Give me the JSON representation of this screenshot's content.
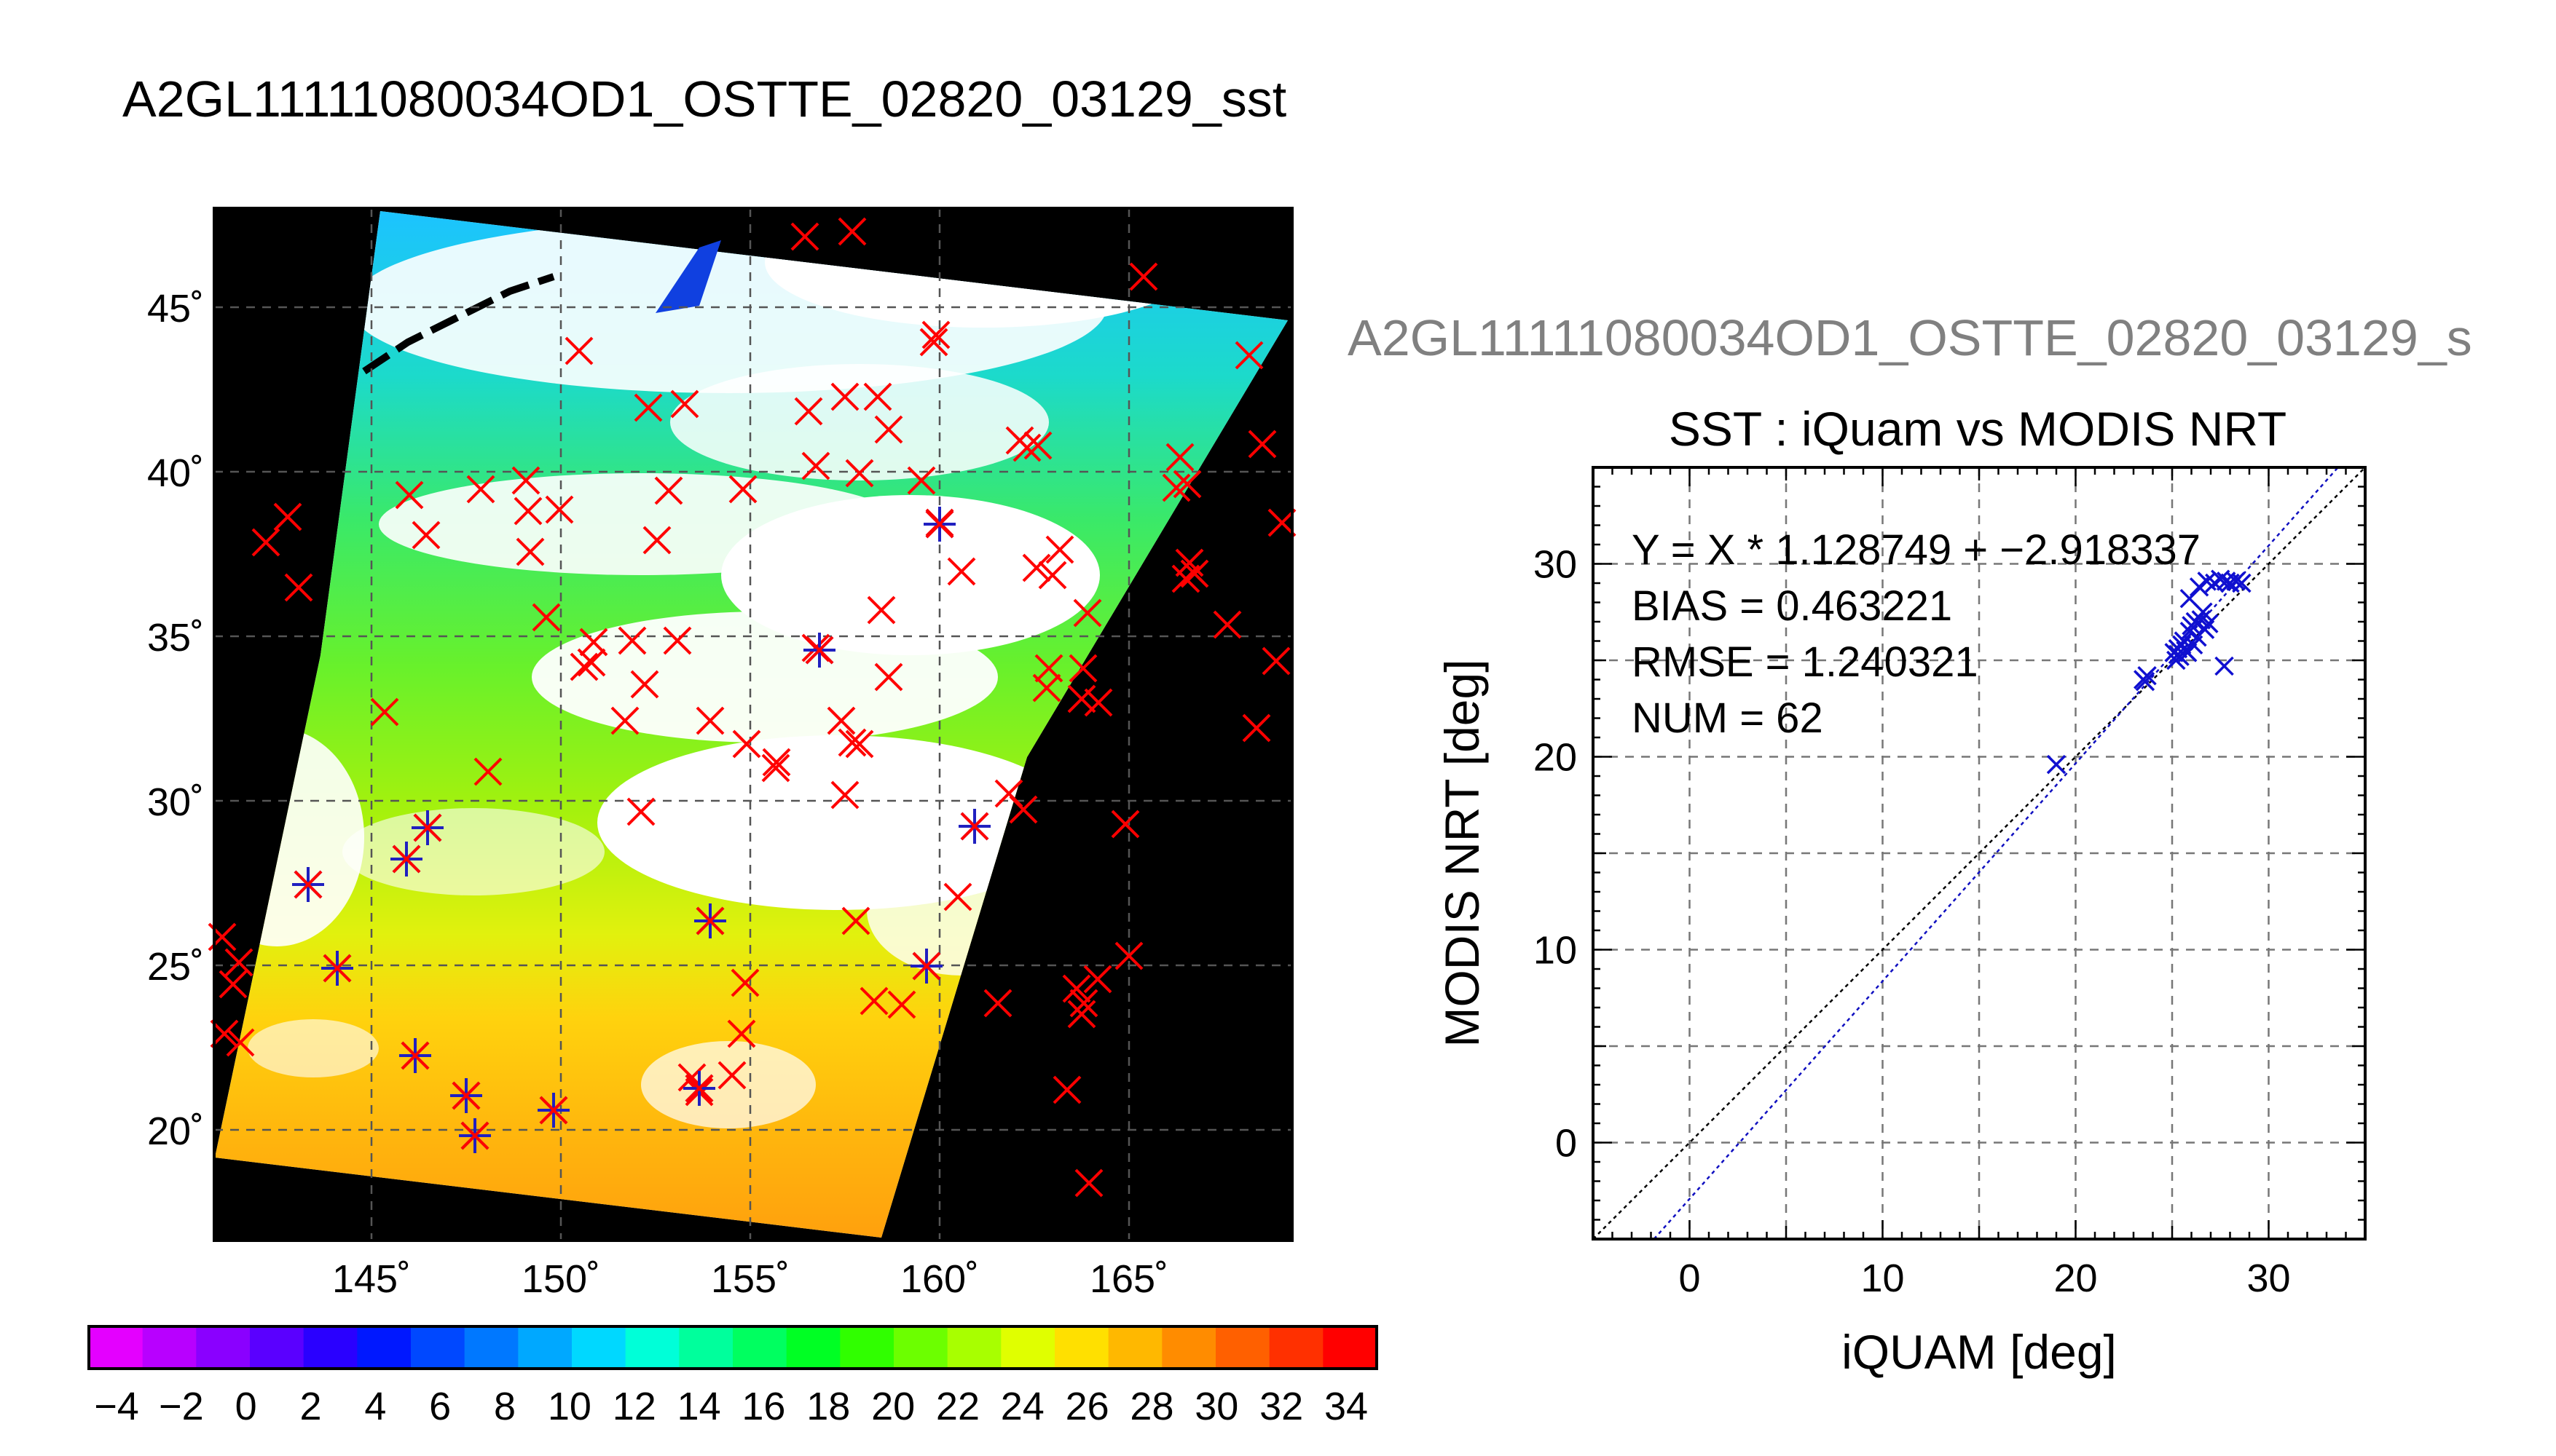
{
  "page_title": "A2GL11111080034OD1_OSTTE_02820_03129_sst",
  "scatter_subtitle": "A2GL11111080034OD1_OSTTE_02820_03129_s",
  "colors": {
    "scatter_marker": "#1010d0",
    "map_marker_red": "#ff0000",
    "map_marker_blue": "#2020c0",
    "fit_line": "#1010c0",
    "one_to_one_line": "#000000"
  },
  "map": {
    "lon_ticks": [
      "145˚",
      "150˚",
      "155˚",
      "160˚",
      "165˚"
    ],
    "lat_ticks": [
      "45˚",
      "40˚",
      "35˚",
      "30˚",
      "25˚",
      "20˚"
    ],
    "colorbar": {
      "ticks": [
        "−4",
        "−2",
        "0",
        "2",
        "4",
        "6",
        "8",
        "10",
        "12",
        "14",
        "16",
        "18",
        "20",
        "22",
        "24",
        "26",
        "28",
        "30",
        "32",
        "34"
      ],
      "colors": [
        "#e400ff",
        "#b800ff",
        "#8a00ff",
        "#5a00ff",
        "#2a00ff",
        "#0018ff",
        "#0048ff",
        "#0078ff",
        "#00a8ff",
        "#00d8ff",
        "#00ffd8",
        "#00ff9c",
        "#00ff60",
        "#00ff24",
        "#30ff00",
        "#6cff00",
        "#a8ff00",
        "#e0ff00",
        "#ffe000",
        "#ffb800",
        "#ff8c00",
        "#ff6000",
        "#ff3000",
        "#ff0000"
      ]
    }
  },
  "chart_data": {
    "type": "scatter",
    "title": "SST : iQuam vs MODIS NRT",
    "xlabel": "iQUAM [deg]",
    "ylabel": "MODIS NRT [deg]",
    "xlim": [
      -5,
      35
    ],
    "ylim": [
      -5,
      35
    ],
    "x_ticks": [
      "0",
      "10",
      "20",
      "30"
    ],
    "y_ticks": [
      "0",
      "10",
      "20",
      "30"
    ],
    "grid": true,
    "stats": {
      "fit": "Y = X * 1.128749 + −2.918337",
      "bias": "BIAS = 0.463221",
      "rmse": "RMSE = 1.240321",
      "num": "NUM = 62"
    },
    "fit_line": {
      "slope": 1.128749,
      "intercept": -2.918337
    },
    "points": [
      {
        "x": 19.0,
        "y": 19.6
      },
      {
        "x": 23.5,
        "y": 24.0
      },
      {
        "x": 23.7,
        "y": 24.2
      },
      {
        "x": 23.6,
        "y": 23.9
      },
      {
        "x": 25.1,
        "y": 25.4
      },
      {
        "x": 25.3,
        "y": 25.6
      },
      {
        "x": 25.4,
        "y": 25.2
      },
      {
        "x": 25.5,
        "y": 25.8
      },
      {
        "x": 25.2,
        "y": 25.0
      },
      {
        "x": 25.6,
        "y": 26.0
      },
      {
        "x": 25.8,
        "y": 25.4
      },
      {
        "x": 25.9,
        "y": 26.5
      },
      {
        "x": 26.0,
        "y": 26.8
      },
      {
        "x": 26.2,
        "y": 27.0
      },
      {
        "x": 26.3,
        "y": 26.2
      },
      {
        "x": 26.5,
        "y": 27.1
      },
      {
        "x": 26.7,
        "y": 26.6
      },
      {
        "x": 26.9,
        "y": 26.9
      },
      {
        "x": 26.1,
        "y": 25.8
      },
      {
        "x": 25.9,
        "y": 28.2
      },
      {
        "x": 26.4,
        "y": 28.8
      },
      {
        "x": 26.8,
        "y": 29.1
      },
      {
        "x": 27.2,
        "y": 29.0
      },
      {
        "x": 27.5,
        "y": 29.2
      },
      {
        "x": 27.8,
        "y": 29.1
      },
      {
        "x": 28.0,
        "y": 29.0
      },
      {
        "x": 28.3,
        "y": 29.1
      },
      {
        "x": 28.6,
        "y": 29.0
      },
      {
        "x": 27.7,
        "y": 24.7
      },
      {
        "x": 25.3,
        "y": 25.3
      },
      {
        "x": 25.7,
        "y": 25.5
      },
      {
        "x": 26.6,
        "y": 27.5
      }
    ]
  }
}
